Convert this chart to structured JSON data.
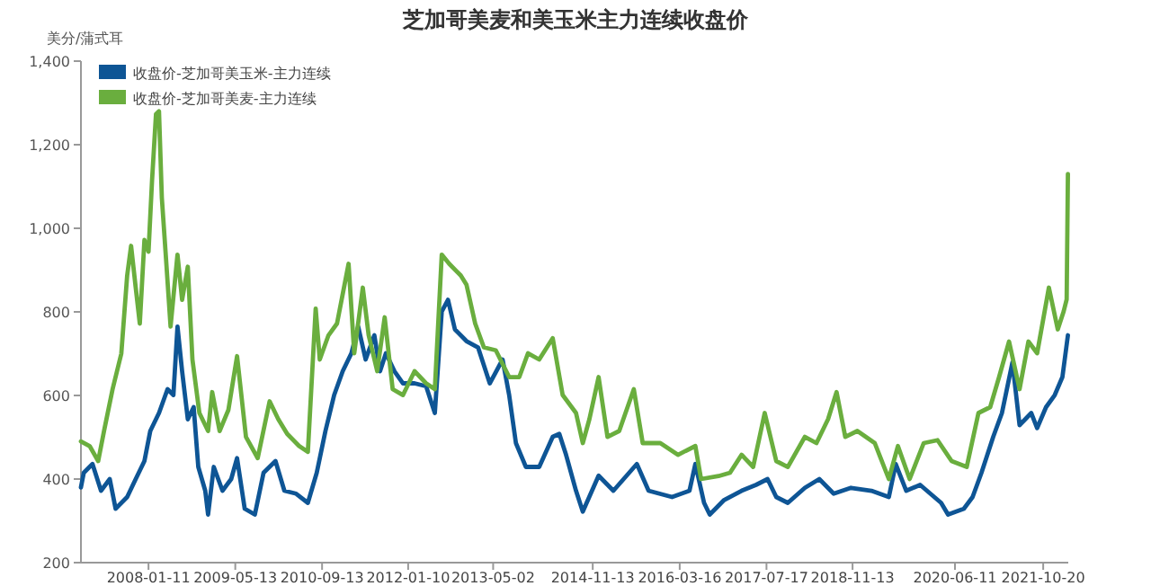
{
  "chart_data": {
    "type": "line",
    "title": "芝加哥美麦和美玉米主力连续收盘价",
    "ylabel": "美分/蒲式耳",
    "legend": "top left",
    "xlim": [
      "2006-12-27",
      "2022-03-10"
    ],
    "ylim": [
      200,
      1400
    ],
    "xticks": [
      "2008-01-11",
      "2009-05-13",
      "2010-09-13",
      "2012-01-10",
      "2013-05-02",
      "2014-11-13",
      "2016-03-16",
      "2017-07-17",
      "2018-11-13",
      "2020-06-11",
      "2021-10-20"
    ],
    "yticks": [
      200,
      400,
      600,
      800,
      {
        "value": 1000,
        "label": "1,000"
      },
      {
        "value": 1200,
        "label": "1,200"
      },
      {
        "value": 1400,
        "label": "1,400"
      }
    ],
    "series": [
      {
        "name": "收盘价-芝加哥美玉米-主力连续",
        "color": "#0e5595",
        "x": [
          "2006-12-27",
          "2007-01-12",
          "2007-03-02",
          "2007-04-19",
          "2007-06-07",
          "2007-07-10",
          "2007-09-13",
          "2007-10-31",
          "2007-12-19",
          "2008-01-21",
          "2008-03-10",
          "2008-04-27",
          "2008-05-30",
          "2008-06-22",
          "2008-07-18",
          "2008-08-19",
          "2008-09-21",
          "2008-10-17",
          "2008-11-25",
          "2008-12-11",
          "2009-01-12",
          "2009-03-02",
          "2009-04-20",
          "2009-05-23",
          "2009-07-05",
          "2009-08-31",
          "2009-10-19",
          "2009-12-25",
          "2010-02-13",
          "2010-04-20",
          "2010-06-25",
          "2010-08-14",
          "2010-10-02",
          "2010-11-20",
          "2011-01-07",
          "2011-02-25",
          "2011-04-04",
          "2011-05-16",
          "2011-07-04",
          "2011-08-05",
          "2011-09-07",
          "2011-10-25",
          "2011-12-12",
          "2012-02-15",
          "2012-04-20",
          "2012-06-08",
          "2012-07-17",
          "2012-08-21",
          "2012-09-29",
          "2012-12-03",
          "2013-02-06",
          "2013-04-13",
          "2013-06-24",
          "2013-07-31",
          "2013-09-07",
          "2013-11-02",
          "2014-01-16",
          "2014-04-02",
          "2014-05-09",
          "2014-06-16",
          "2014-08-11",
          "2014-09-18",
          "2014-12-16",
          "2015-03-09",
          "2015-07-19",
          "2015-09-23",
          "2016-02-02",
          "2016-05-10",
          "2016-06-12",
          "2016-07-31",
          "2016-09-01",
          "2016-11-21",
          "2017-02-27",
          "2017-05-19",
          "2017-07-23",
          "2017-09-10",
          "2017-11-14",
          "2018-02-18",
          "2018-05-10",
          "2018-07-30",
          "2018-11-04",
          "2019-02-27",
          "2019-06-05",
          "2019-07-14",
          "2019-09-11",
          "2019-11-28",
          "2020-03-25",
          "2020-05-03",
          "2020-07-31",
          "2020-09-18",
          "2020-11-07",
          "2021-01-12",
          "2021-03-02",
          "2021-04-30",
          "2021-06-09",
          "2021-08-14",
          "2021-09-16",
          "2021-11-05",
          "2021-12-24",
          "2022-02-05",
          "2022-03-08"
        ],
        "values": [
          380,
          415,
          436,
          372,
          400,
          329,
          357,
          400,
          443,
          515,
          558,
          615,
          601,
          765,
          658,
          543,
          572,
          429,
          372,
          315,
          429,
          372,
          400,
          450,
          329,
          315,
          415,
          443,
          372,
          365,
          343,
          415,
          515,
          601,
          658,
          701,
          765,
          686,
          744,
          658,
          701,
          658,
          629,
          629,
          622,
          558,
          801,
          829,
          758,
          730,
          715,
          629,
          686,
          601,
          486,
          429,
          429,
          501,
          508,
          458,
          372,
          322,
          408,
          372,
          436,
          372,
          357,
          372,
          436,
          343,
          315,
          350,
          372,
          386,
          400,
          357,
          343,
          379,
          400,
          365,
          379,
          372,
          357,
          436,
          372,
          386,
          343,
          315,
          329,
          357,
          415,
          501,
          558,
          679,
          529,
          558,
          522,
          572,
          601,
          644,
          744
        ]
      },
      {
        "name": "收盘价-芝加哥美麦-主力连续",
        "color": "#6aae3e",
        "x": [
          "2006-12-27",
          "2007-02-14",
          "2007-04-03",
          "2007-05-06",
          "2007-06-23",
          "2007-08-11",
          "2007-09-13",
          "2007-10-05",
          "2007-10-31",
          "2007-11-23",
          "2007-12-19",
          "2008-01-11",
          "2008-01-31",
          "2008-02-22",
          "2008-03-10",
          "2008-03-26",
          "2008-04-18",
          "2008-05-14",
          "2008-06-22",
          "2008-07-18",
          "2008-08-19",
          "2008-09-14",
          "2008-10-23",
          "2008-12-11",
          "2009-01-03",
          "2009-02-14",
          "2009-04-04",
          "2009-05-23",
          "2009-07-12",
          "2009-09-16",
          "2009-11-22",
          "2010-01-10",
          "2010-03-01",
          "2010-05-07",
          "2010-06-25",
          "2010-08-08",
          "2010-08-31",
          "2010-10-19",
          "2010-12-06",
          "2011-02-09",
          "2011-03-13",
          "2011-04-30",
          "2011-06-02",
          "2011-07-20",
          "2011-08-31",
          "2011-10-15",
          "2011-12-12",
          "2012-02-15",
          "2012-04-20",
          "2012-06-08",
          "2012-07-17",
          "2012-08-28",
          "2012-11-01",
          "2012-12-03",
          "2013-01-21",
          "2013-03-11",
          "2013-05-17",
          "2013-07-31",
          "2013-09-26",
          "2013-11-14",
          "2014-01-16",
          "2014-04-02",
          "2014-05-28",
          "2014-08-11",
          "2014-09-18",
          "2014-10-25",
          "2014-12-16",
          "2015-02-04",
          "2015-04-11",
          "2015-07-02",
          "2015-08-21",
          "2015-11-28",
          "2016-03-06",
          "2016-06-12",
          "2016-07-14",
          "2016-10-20",
          "2016-12-24",
          "2017-02-27",
          "2017-05-03",
          "2017-07-07",
          "2017-09-10",
          "2017-11-14",
          "2018-02-18",
          "2018-04-24",
          "2018-06-28",
          "2018-08-15",
          "2018-10-03",
          "2018-12-10",
          "2019-03-18",
          "2019-06-05",
          "2019-07-26",
          "2019-09-30",
          "2019-12-18",
          "2020-03-05",
          "2020-05-23",
          "2020-08-16",
          "2020-10-21",
          "2020-12-26",
          "2021-02-14",
          "2021-04-11",
          "2021-06-09",
          "2021-07-29",
          "2021-09-16",
          "2021-11-21",
          "2022-01-10",
          "2022-02-12",
          "2022-03-01",
          "2022-03-08"
        ],
        "values": [
          490,
          479,
          443,
          515,
          615,
          700,
          887,
          958,
          858,
          772,
          972,
          944,
          1115,
          1273,
          1280,
          1073,
          930,
          765,
          937,
          829,
          908,
          686,
          558,
          515,
          608,
          515,
          565,
          694,
          501,
          450,
          586,
          543,
          508,
          479,
          465,
          808,
          686,
          744,
          772,
          915,
          701,
          858,
          744,
          658,
          787,
          615,
          601,
          658,
          629,
          615,
          937,
          915,
          887,
          865,
          772,
          715,
          708,
          644,
          644,
          701,
          686,
          737,
          601,
          558,
          486,
          543,
          644,
          501,
          515,
          615,
          486,
          486,
          458,
          479,
          400,
          407,
          415,
          458,
          429,
          558,
          443,
          429,
          501,
          486,
          543,
          608,
          501,
          515,
          486,
          400,
          479,
          400,
          486,
          493,
          443,
          429,
          558,
          572,
          644,
          729,
          615,
          729,
          701,
          858,
          758,
          801,
          830,
          1130
        ]
      }
    ]
  }
}
